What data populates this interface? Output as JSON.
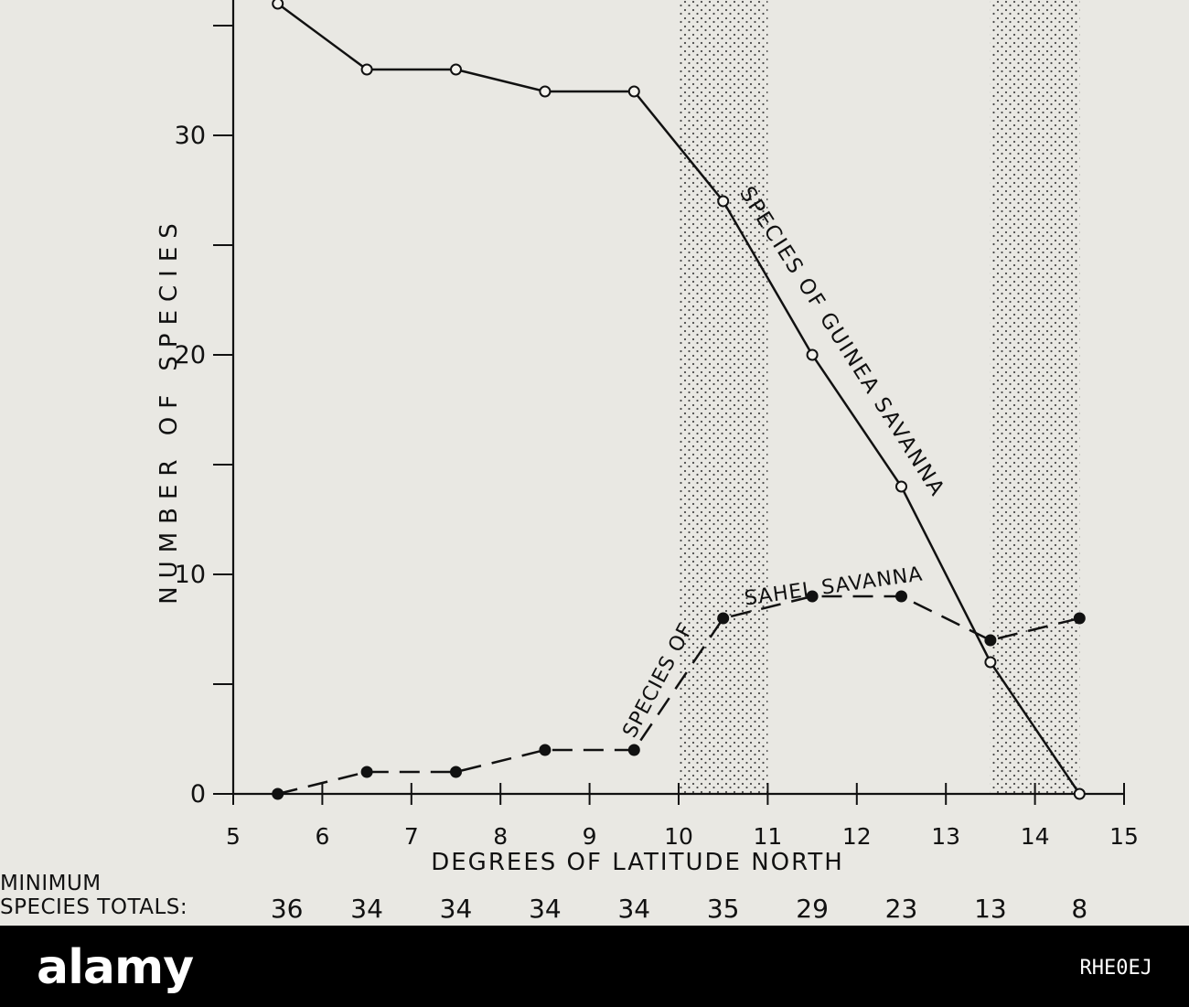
{
  "chart_data": {
    "type": "line",
    "xlabel": "DEGREES OF LATITUDE NORTH",
    "ylabel": "NUMBER OF SPECIES",
    "xlim": [
      5,
      15
    ],
    "ylim": [
      0,
      36
    ],
    "x_ticks": [
      5,
      6,
      7,
      8,
      9,
      10,
      11,
      12,
      13,
      14,
      15
    ],
    "y_tick_labels": [
      0,
      10,
      20,
      30
    ],
    "y_minor_ticks": [
      5,
      15,
      25,
      35
    ],
    "shaded_bands": [
      [
        10,
        11
      ],
      [
        13.5,
        14.5
      ]
    ],
    "series": [
      {
        "name": "SPECIES OF GUINEA SAVANNA",
        "style": "solid-open-circles",
        "x": [
          5.5,
          6.5,
          7.5,
          8.5,
          9.5,
          10.5,
          11.5,
          12.5,
          13.5,
          14.5
        ],
        "y": [
          36,
          33,
          33,
          32,
          32,
          27,
          20,
          14,
          6,
          0
        ]
      },
      {
        "name": "SPECIES OF SAHEL SAVANNA",
        "style": "dashed-filled-circles",
        "x": [
          5.5,
          6.5,
          7.5,
          8.5,
          9.5,
          10.5,
          11.5,
          12.5,
          13.5,
          14.5
        ],
        "y": [
          0,
          1,
          1,
          2,
          2,
          8,
          9,
          9,
          7,
          8
        ]
      }
    ]
  },
  "totals": {
    "label_line1": "MINIMUM",
    "label_line2": "SPECIES TOTALS:",
    "values": [
      "36",
      "34",
      "34",
      "34",
      "34",
      "35",
      "29",
      "23",
      "13",
      "8"
    ]
  },
  "watermark": {
    "logo": "alamy",
    "image_id": "RHE0EJ"
  }
}
